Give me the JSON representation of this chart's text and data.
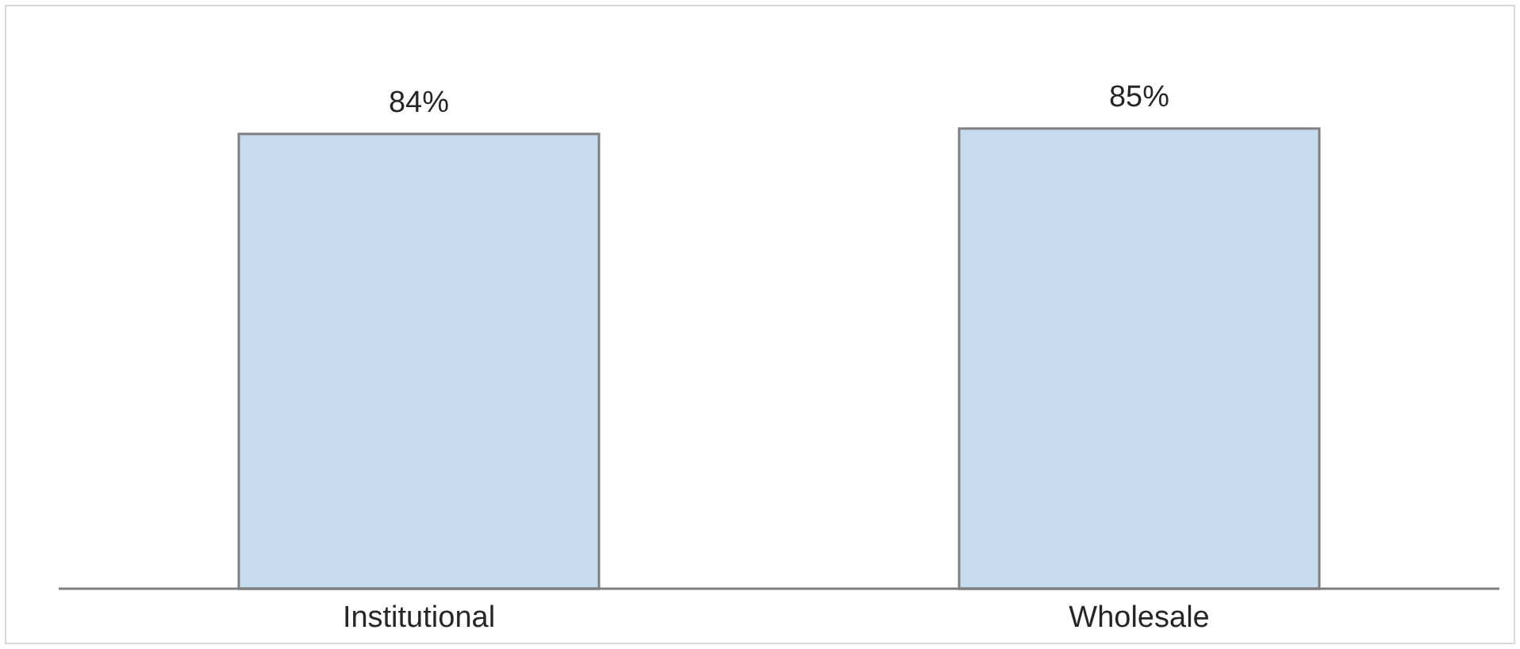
{
  "chart_data": {
    "type": "bar",
    "categories": [
      "Institutional",
      "Wholesale"
    ],
    "values": [
      84,
      85
    ],
    "color": "#c6dcee",
    "value_labels": [
      "84%",
      "85%"
    ]
  }
}
